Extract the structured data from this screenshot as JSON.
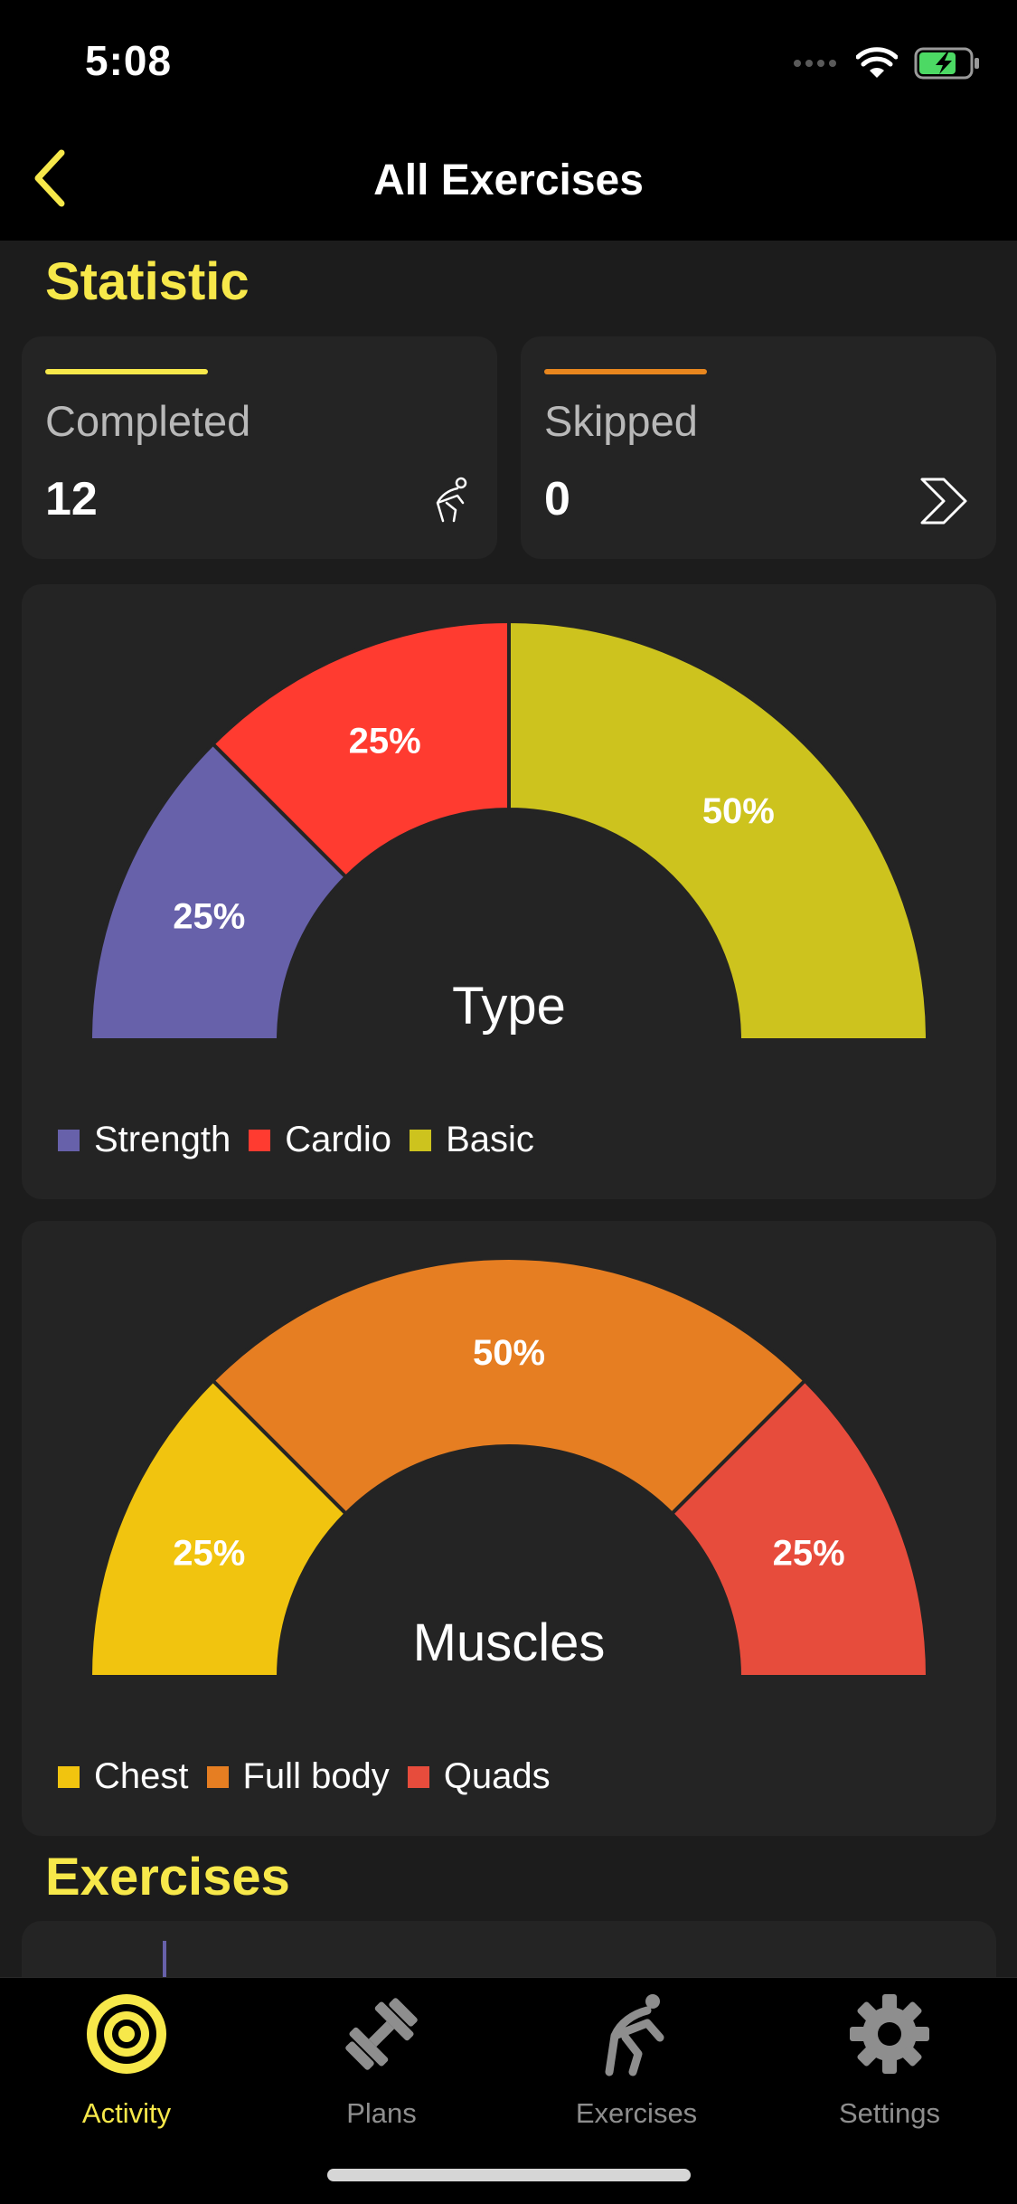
{
  "status": {
    "time": "5:08"
  },
  "nav": {
    "title": "All Exercises"
  },
  "statistic": {
    "title": "Statistic",
    "completed": {
      "label": "Completed",
      "value": "12",
      "bar_color": "#f7e84a"
    },
    "skipped": {
      "label": "Skipped",
      "value": "0",
      "bar_color": "#e8861e"
    }
  },
  "chart_data": [
    {
      "type": "pie",
      "variant": "half-donut",
      "center_label": "Type",
      "categories": [
        "Strength",
        "Cardio",
        "Basic"
      ],
      "values": [
        25,
        25,
        50
      ],
      "value_labels": [
        "25%",
        "25%",
        "50%"
      ],
      "colors": [
        "#6761aa",
        "#ff3b30",
        "#cdc31e"
      ],
      "legend": "bottom-left"
    },
    {
      "type": "pie",
      "variant": "half-donut",
      "center_label": "Muscles",
      "categories": [
        "Chest",
        "Full body",
        "Quads"
      ],
      "values": [
        25,
        50,
        25
      ],
      "value_labels": [
        "25%",
        "50%",
        "25%"
      ],
      "colors": [
        "#f1c40f",
        "#e67e22",
        "#e74c3c"
      ],
      "legend": "bottom-left"
    }
  ],
  "exercises": {
    "title": "Exercises"
  },
  "tabs": [
    {
      "label": "Activity",
      "icon": "target-icon",
      "active": true
    },
    {
      "label": "Plans",
      "icon": "dumbbell-icon",
      "active": false
    },
    {
      "label": "Exercises",
      "icon": "stretching-person-icon",
      "active": false
    },
    {
      "label": "Settings",
      "icon": "gear-icon",
      "active": false
    }
  ],
  "colors": {
    "accent": "#f7e84a",
    "background": "#1c1c1c",
    "card": "#242424"
  }
}
